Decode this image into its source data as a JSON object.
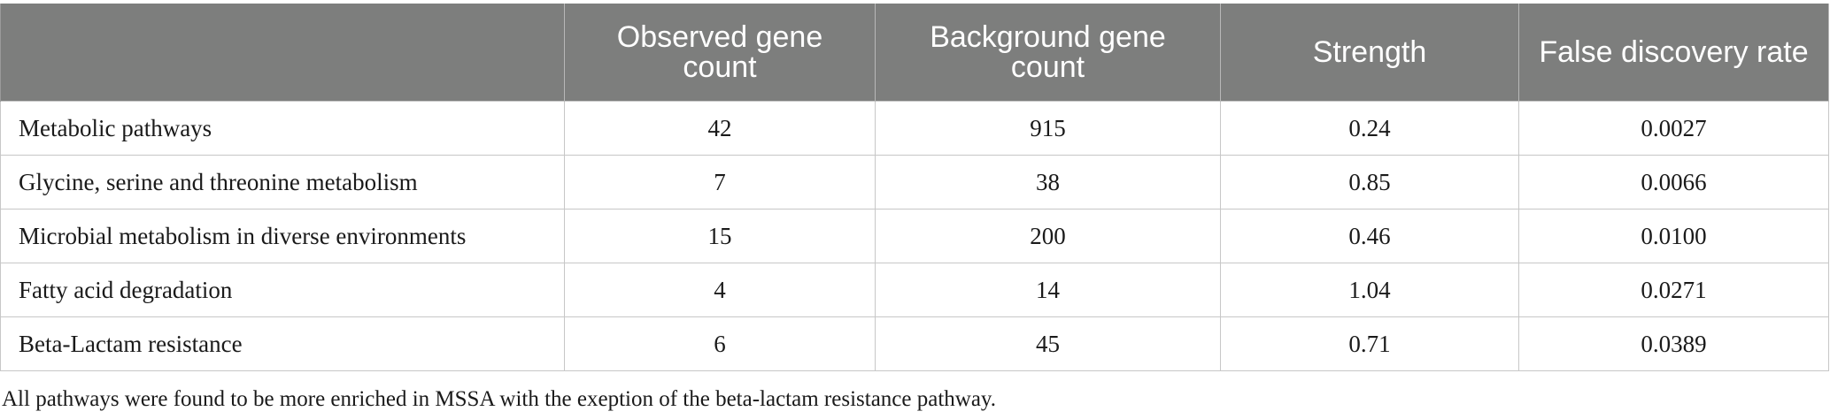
{
  "table": {
    "headers": [
      "",
      "Observed gene count",
      "Background gene count",
      "Strength",
      "False discovery rate"
    ],
    "rows": [
      {
        "pathway": "Metabolic pathways",
        "observed": "42",
        "background": "915",
        "strength": "0.24",
        "fdr": "0.0027"
      },
      {
        "pathway": "Glycine, serine and threonine metabolism",
        "observed": "7",
        "background": "38",
        "strength": "0.85",
        "fdr": "0.0066"
      },
      {
        "pathway": "Microbial metabolism in diverse environments",
        "observed": "15",
        "background": "200",
        "strength": "0.46",
        "fdr": "0.0100"
      },
      {
        "pathway": "Fatty acid degradation",
        "observed": "4",
        "background": "14",
        "strength": "1.04",
        "fdr": "0.0271"
      },
      {
        "pathway": "Beta-Lactam resistance",
        "observed": "6",
        "background": "45",
        "strength": "0.71",
        "fdr": "0.0389"
      }
    ]
  },
  "footnote": "All pathways were found to be more enriched in MSSA with the exeption of the beta-lactam resistance pathway.",
  "colors": {
    "header_background": "#7d7e7d",
    "header_text": "#ffffff",
    "grid_line": "#c7c7c7"
  }
}
